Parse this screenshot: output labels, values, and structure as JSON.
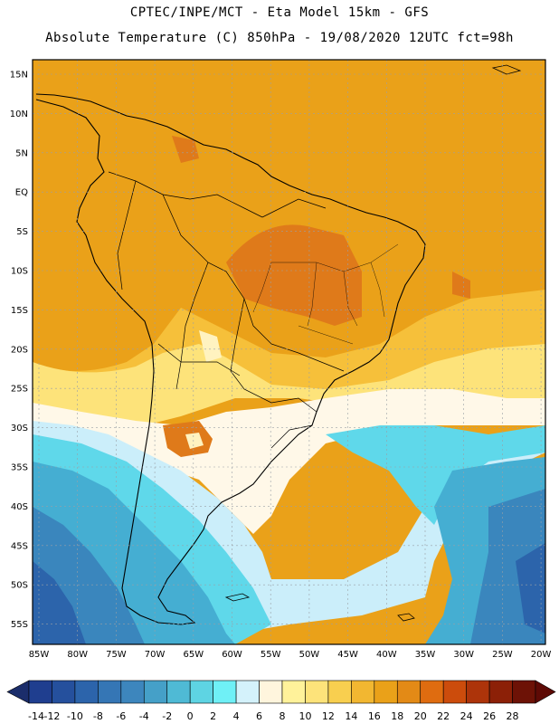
{
  "header": {
    "line1": "CPTEC/INPE/MCT -  Eta Model 15km - GFS",
    "line2": "Absolute Temperature (C) 850hPa - 19/08/2020 12UTC fct=98h"
  },
  "axes": {
    "lat_labels": [
      "15N",
      "10N",
      "5N",
      "EQ",
      "5S",
      "10S",
      "15S",
      "20S",
      "25S",
      "30S",
      "35S",
      "40S",
      "45S",
      "50S",
      "55S"
    ],
    "lon_labels": [
      "85W",
      "80W",
      "75W",
      "70W",
      "65W",
      "60W",
      "55W",
      "50W",
      "45W",
      "40W",
      "35W",
      "30W",
      "25W",
      "20W"
    ]
  },
  "colorbar": {
    "labels": [
      "-14",
      "-12",
      "-10",
      "-8",
      "-6",
      "-4",
      "-2",
      "0",
      "2",
      "4",
      "6",
      "8",
      "10",
      "12",
      "14",
      "16",
      "18",
      "20",
      "22",
      "24",
      "26",
      "28"
    ],
    "colors": [
      "#1f3e8f",
      "#25509d",
      "#2c64ab",
      "#3576b5",
      "#3d86bd",
      "#45a0c8",
      "#4fbad5",
      "#5ed4e3",
      "#6ff0f6",
      "#d4f2fb",
      "#fff5dd",
      "#fff29a",
      "#fde37a",
      "#f8cf4f",
      "#f2b731",
      "#eaa119",
      "#e38a16",
      "#df6c10",
      "#cc4c0c",
      "#ad340a",
      "#8c2007",
      "#6d1206"
    ],
    "arrow_low": "#1b2d6b",
    "arrow_high": "#5e0a05"
  },
  "palette": {
    "warm_dark": "#df7a1a",
    "warm": "#eaa119",
    "warm_light": "#f6c03a",
    "yellow": "#fde37a",
    "pale_yellow": "#fff3c0",
    "pale": "#fff8e8",
    "cyan_light": "#cbeefa",
    "cyan": "#5fd8ea",
    "blue_light": "#45aed2",
    "blue": "#3a86bd",
    "blue_dark": "#2c64ab"
  }
}
